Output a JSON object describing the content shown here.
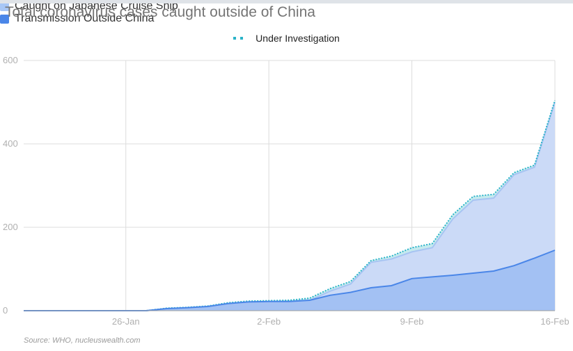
{
  "title": "Total coronavirus cases caught outside of China",
  "source": "Source: WHO, nucleuswealth.com",
  "legend": [
    {
      "label": "Under Investigation",
      "color": "#2ab3c8",
      "style": "dots"
    },
    {
      "label": "Caught on Japanese Cruise Ship",
      "color": "#9fc0f4",
      "style": "box"
    },
    {
      "label": "Transmission Outside China",
      "color": "#4a86e8",
      "style": "box"
    }
  ],
  "chart_data": {
    "type": "area",
    "stacked": true,
    "title": "Total coronavirus cases caught outside of China",
    "xlabel": "",
    "ylabel": "",
    "x_ticks": [
      "26-Jan",
      "2-Feb",
      "9-Feb",
      "16-Feb"
    ],
    "y_ticks": [
      0,
      200,
      400,
      600
    ],
    "ylim": [
      0,
      600
    ],
    "grid": true,
    "legend_position": "top",
    "x": [
      "21-Jan",
      "22-Jan",
      "23-Jan",
      "24-Jan",
      "25-Jan",
      "26-Jan",
      "27-Jan",
      "28-Jan",
      "29-Jan",
      "30-Jan",
      "31-Jan",
      "1-Feb",
      "2-Feb",
      "3-Feb",
      "4-Feb",
      "5-Feb",
      "6-Feb",
      "7-Feb",
      "8-Feb",
      "9-Feb",
      "10-Feb",
      "11-Feb",
      "12-Feb",
      "13-Feb",
      "14-Feb",
      "15-Feb",
      "16-Feb"
    ],
    "series": [
      {
        "name": "Transmission Outside China",
        "color": "#4a86e8",
        "values": [
          0,
          0,
          0,
          0,
          0,
          0,
          0,
          5,
          7,
          10,
          17,
          21,
          22,
          22,
          25,
          37,
          44,
          55,
          60,
          77,
          81,
          85,
          90,
          95,
          108,
          126,
          145
        ]
      },
      {
        "name": "Caught on Japanese Cruise Ship",
        "color": "#9fc0f4",
        "values": [
          0,
          0,
          0,
          0,
          0,
          0,
          0,
          0,
          0,
          0,
          0,
          0,
          0,
          0,
          0,
          10,
          20,
          61,
          64,
          64,
          70,
          135,
          175,
          175,
          218,
          218,
          355
        ]
      },
      {
        "name": "Under Investigation",
        "color": "#2ab3c8",
        "values": [
          0,
          0,
          0,
          0,
          0,
          0,
          0,
          1,
          1,
          1,
          2,
          2,
          2,
          3,
          5,
          6,
          6,
          4,
          7,
          10,
          10,
          10,
          9,
          9,
          5,
          5,
          4
        ]
      }
    ]
  }
}
